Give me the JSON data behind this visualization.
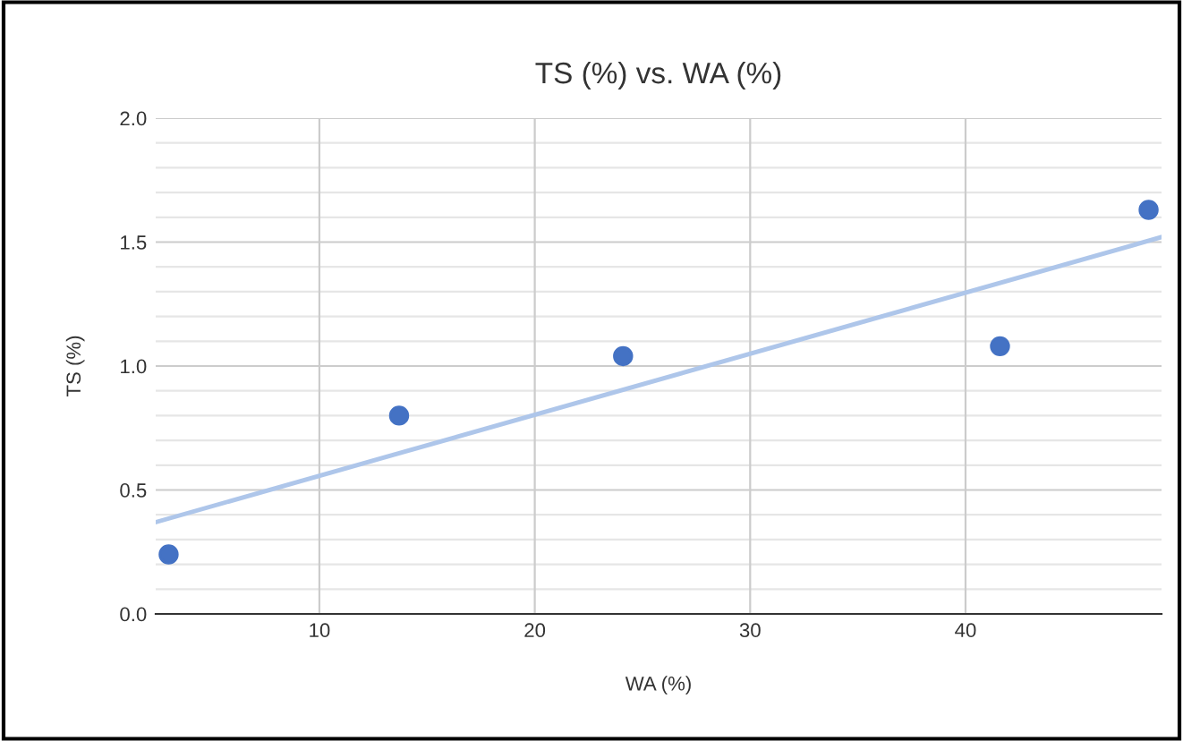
{
  "chart_data": {
    "type": "scatter",
    "title": "TS (%) vs. WA (%)",
    "xlabel": "WA (%)",
    "ylabel": "TS (%)",
    "x": [
      3.0,
      13.7,
      24.1,
      41.6,
      48.5
    ],
    "series": [
      {
        "color": "#4472c4",
        "values": [
          0.24,
          0.8,
          1.04,
          1.08,
          1.63
        ]
      },
      {
        "type": "line",
        "marker": "none",
        "color": "#aec6ea",
        "x": [
          2.4,
          49.1
        ],
        "values": [
          0.37,
          1.52
        ]
      }
    ],
    "xlim": [
      2.4,
      49.1
    ],
    "xticks": [
      10,
      20,
      30,
      40
    ],
    "ylim": [
      0,
      2.0
    ],
    "yticks": [
      {
        "value": 0,
        "label": "0.0"
      },
      {
        "value": 0.1,
        "label": null
      },
      {
        "value": 0.2,
        "label": null
      },
      {
        "value": 0.3,
        "label": null
      },
      {
        "value": 0.4,
        "label": null
      },
      {
        "value": 0.5,
        "label": "0.5"
      },
      {
        "value": 0.6,
        "label": null
      },
      {
        "value": 0.7,
        "label": null
      },
      {
        "value": 0.8,
        "label": null
      },
      {
        "value": 0.9,
        "label": null
      },
      {
        "value": 1.0,
        "label": "1.0"
      },
      {
        "value": 1.1,
        "label": null
      },
      {
        "value": 1.2,
        "label": null
      },
      {
        "value": 1.3,
        "label": null
      },
      {
        "value": 1.4,
        "label": null
      },
      {
        "value": 1.5,
        "label": "1.5"
      },
      {
        "value": 1.6,
        "label": null
      },
      {
        "value": 1.7,
        "label": null
      },
      {
        "value": 1.8,
        "label": null
      },
      {
        "value": 1.9,
        "label": null
      },
      {
        "value": 2.0,
        "label": "2.0"
      }
    ],
    "grid": true,
    "marker": "circle",
    "legend": false
  }
}
